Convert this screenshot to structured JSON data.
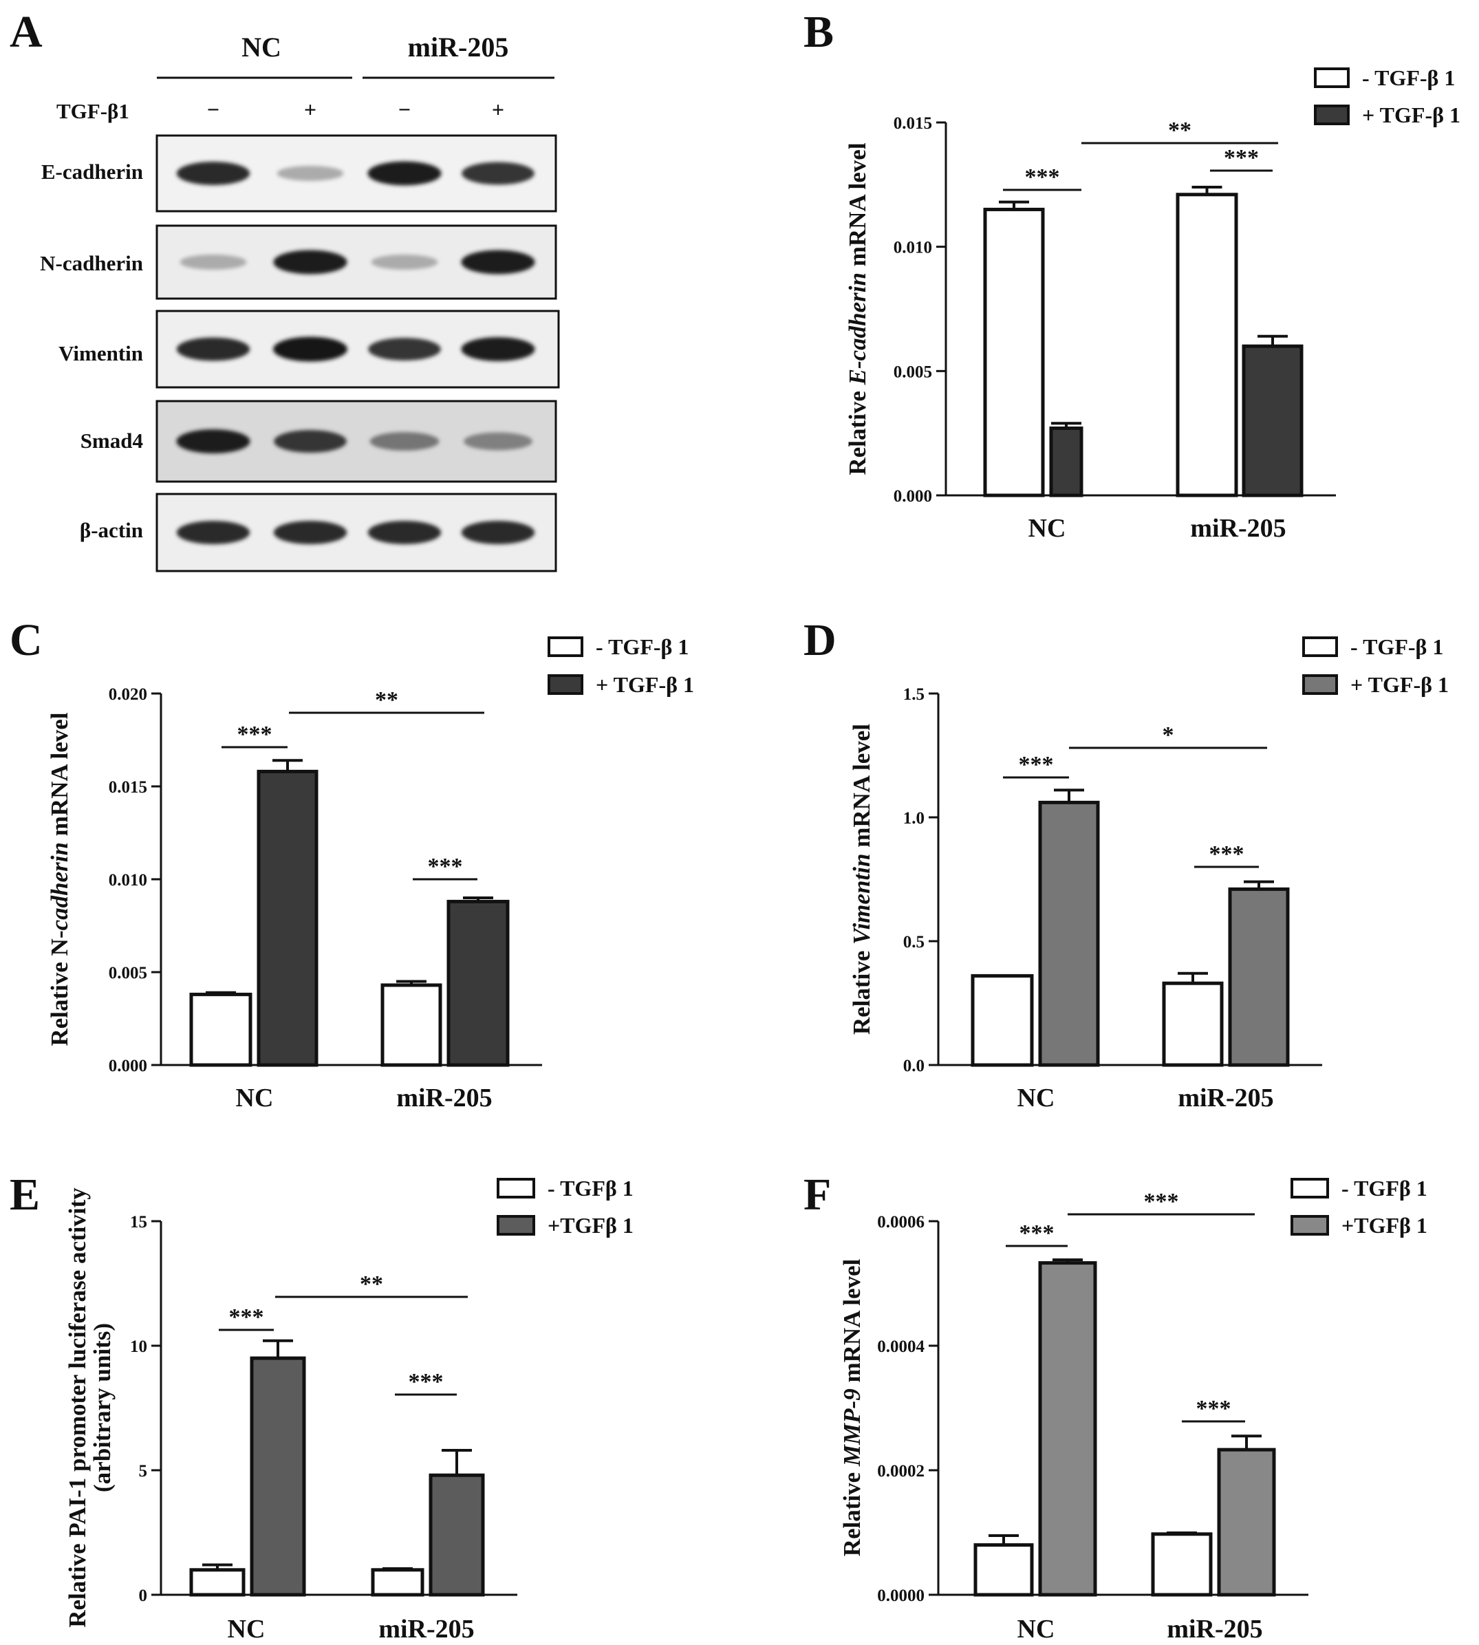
{
  "panel_a": {
    "label": "A",
    "groups": [
      {
        "label": "NC"
      },
      {
        "label": "miR-205"
      }
    ],
    "treatment_label": "TGF-β1",
    "treatment_signs": [
      "−",
      "+",
      "−",
      "+"
    ],
    "blots": [
      {
        "label": "E-cadherin",
        "intensity": [
          0.9,
          0.3,
          0.95,
          0.85
        ],
        "background": "#f2f2f2"
      },
      {
        "label": "N-cadherin",
        "intensity": [
          0.3,
          0.95,
          0.3,
          0.95
        ],
        "background": "#ececec"
      },
      {
        "label": "Vimentin",
        "intensity": [
          0.9,
          1.0,
          0.85,
          0.95
        ],
        "background": "#efefef"
      },
      {
        "label": "Smad4",
        "intensity": [
          0.95,
          0.85,
          0.55,
          0.5
        ],
        "background": "#d9d9d9"
      },
      {
        "label": "β-actin",
        "intensity": [
          0.9,
          0.9,
          0.9,
          0.9
        ],
        "background": "#eeeeee"
      }
    ]
  },
  "chart_data": [
    {
      "panel": "B",
      "type": "bar",
      "categories": [
        "NC",
        "miR-205"
      ],
      "ylabel_parts": [
        {
          "t": "Relative ",
          "i": false
        },
        {
          "t": "E-cadherin",
          "i": true
        },
        {
          "t": " mRNA level",
          "i": false
        }
      ],
      "ylim": [
        0,
        0.015
      ],
      "yticks": [
        "0.000",
        "0.005",
        "0.010",
        "0.015"
      ],
      "ytick_values": [
        0,
        0.005,
        0.01,
        0.015
      ],
      "series": [
        {
          "name": "-  TGF-β 1",
          "values": [
            0.0115,
            0.0121
          ],
          "errors": [
            0.0003,
            0.0003
          ],
          "color": "#ffffff"
        },
        {
          "name": "+ TGF-β 1",
          "values": [
            0.0027,
            0.006
          ],
          "errors": [
            0.0002,
            0.0004
          ],
          "color": "#3a3a3a"
        }
      ],
      "significance": [
        {
          "text": "***",
          "type": "within",
          "group": 0
        },
        {
          "text": "***",
          "type": "within",
          "group": 1
        },
        {
          "text": "**",
          "type": "between"
        }
      ]
    },
    {
      "panel": "C",
      "type": "bar",
      "categories": [
        "NC",
        "miR-205"
      ],
      "ylabel_parts": [
        {
          "t": "Relative N-",
          "i": false
        },
        {
          "t": "cadherin",
          "i": true
        },
        {
          "t": " mRNA level",
          "i": false
        }
      ],
      "ylim": [
        0,
        0.02
      ],
      "yticks": [
        "0.000",
        "0.005",
        "0.010",
        "0.015",
        "0.020"
      ],
      "ytick_values": [
        0,
        0.005,
        0.01,
        0.015,
        0.02
      ],
      "series": [
        {
          "name": "-  TGF-β 1",
          "values": [
            0.0038,
            0.0043
          ],
          "errors": [
            0.0001,
            0.0002
          ],
          "color": "#ffffff"
        },
        {
          "name": "+ TGF-β 1",
          "values": [
            0.0158,
            0.0088
          ],
          "errors": [
            0.0006,
            0.0002
          ],
          "color": "#3a3a3a"
        }
      ],
      "significance": [
        {
          "text": "***",
          "type": "within",
          "group": 0
        },
        {
          "text": "***",
          "type": "within",
          "group": 1
        },
        {
          "text": "**",
          "type": "between"
        }
      ]
    },
    {
      "panel": "D",
      "type": "bar",
      "categories": [
        "NC",
        "miR-205"
      ],
      "ylabel_parts": [
        {
          "t": "Relative ",
          "i": false
        },
        {
          "t": "Vimentin",
          "i": true
        },
        {
          "t": " mRNA level",
          "i": false
        }
      ],
      "ylim": [
        0,
        1.5
      ],
      "yticks": [
        "0.0",
        "0.5",
        "1.0",
        "1.5"
      ],
      "ytick_values": [
        0,
        0.5,
        1.0,
        1.5
      ],
      "series": [
        {
          "name": "-  TGF-β 1",
          "values": [
            0.36,
            0.33
          ],
          "errors": [
            0.0,
            0.04
          ],
          "color": "#ffffff"
        },
        {
          "name": "+ TGF-β 1",
          "values": [
            1.06,
            0.71
          ],
          "errors": [
            0.05,
            0.03
          ],
          "color": "#777777"
        }
      ],
      "significance": [
        {
          "text": "***",
          "type": "within",
          "group": 0
        },
        {
          "text": "***",
          "type": "within",
          "group": 1
        },
        {
          "text": "*",
          "type": "between"
        }
      ]
    },
    {
      "panel": "E",
      "type": "bar",
      "categories": [
        "NC",
        "miR-205"
      ],
      "ylabel_lines": [
        "Relative PAI-1 promoter luciferase activity",
        "(arbitrary units)"
      ],
      "ylim": [
        0,
        15
      ],
      "yticks": [
        "0",
        "5",
        "10",
        "15"
      ],
      "ytick_values": [
        0,
        5,
        10,
        15
      ],
      "series": [
        {
          "name": "- TGFβ 1",
          "values": [
            1.0,
            1.0
          ],
          "errors": [
            0.2,
            0.05
          ],
          "color": "#ffffff"
        },
        {
          "name": "+TGFβ 1",
          "values": [
            9.5,
            4.8
          ],
          "errors": [
            0.7,
            1.0
          ],
          "color": "#5c5c5c"
        }
      ],
      "significance": [
        {
          "text": "***",
          "type": "within",
          "group": 0
        },
        {
          "text": "***",
          "type": "within",
          "group": 1
        },
        {
          "text": "**",
          "type": "between"
        }
      ]
    },
    {
      "panel": "F",
      "type": "bar",
      "categories": [
        "NC",
        "miR-205"
      ],
      "ylabel_parts": [
        {
          "t": "Relative ",
          "i": false
        },
        {
          "t": "MMP-9",
          "i": true
        },
        {
          "t": " mRNA level",
          "i": false
        }
      ],
      "ylim": [
        0,
        0.0006
      ],
      "yticks": [
        "0.0000",
        "0.0002",
        "0.0004",
        "0.0006"
      ],
      "ytick_values": [
        0,
        0.0002,
        0.0004,
        0.0006
      ],
      "series": [
        {
          "name": "- TGFβ 1",
          "values": [
            8e-05,
            9.75e-05
          ],
          "errors": [
            1.5e-05,
            2e-06
          ],
          "color": "#ffffff"
        },
        {
          "name": "+TGFβ 1",
          "values": [
            0.000533,
            0.000233
          ],
          "errors": [
            5e-06,
            2.2e-05
          ],
          "color": "#888888"
        }
      ],
      "significance": [
        {
          "text": "***",
          "type": "within",
          "group": 0
        },
        {
          "text": "***",
          "type": "within",
          "group": 1
        },
        {
          "text": "***",
          "type": "between"
        }
      ]
    }
  ]
}
